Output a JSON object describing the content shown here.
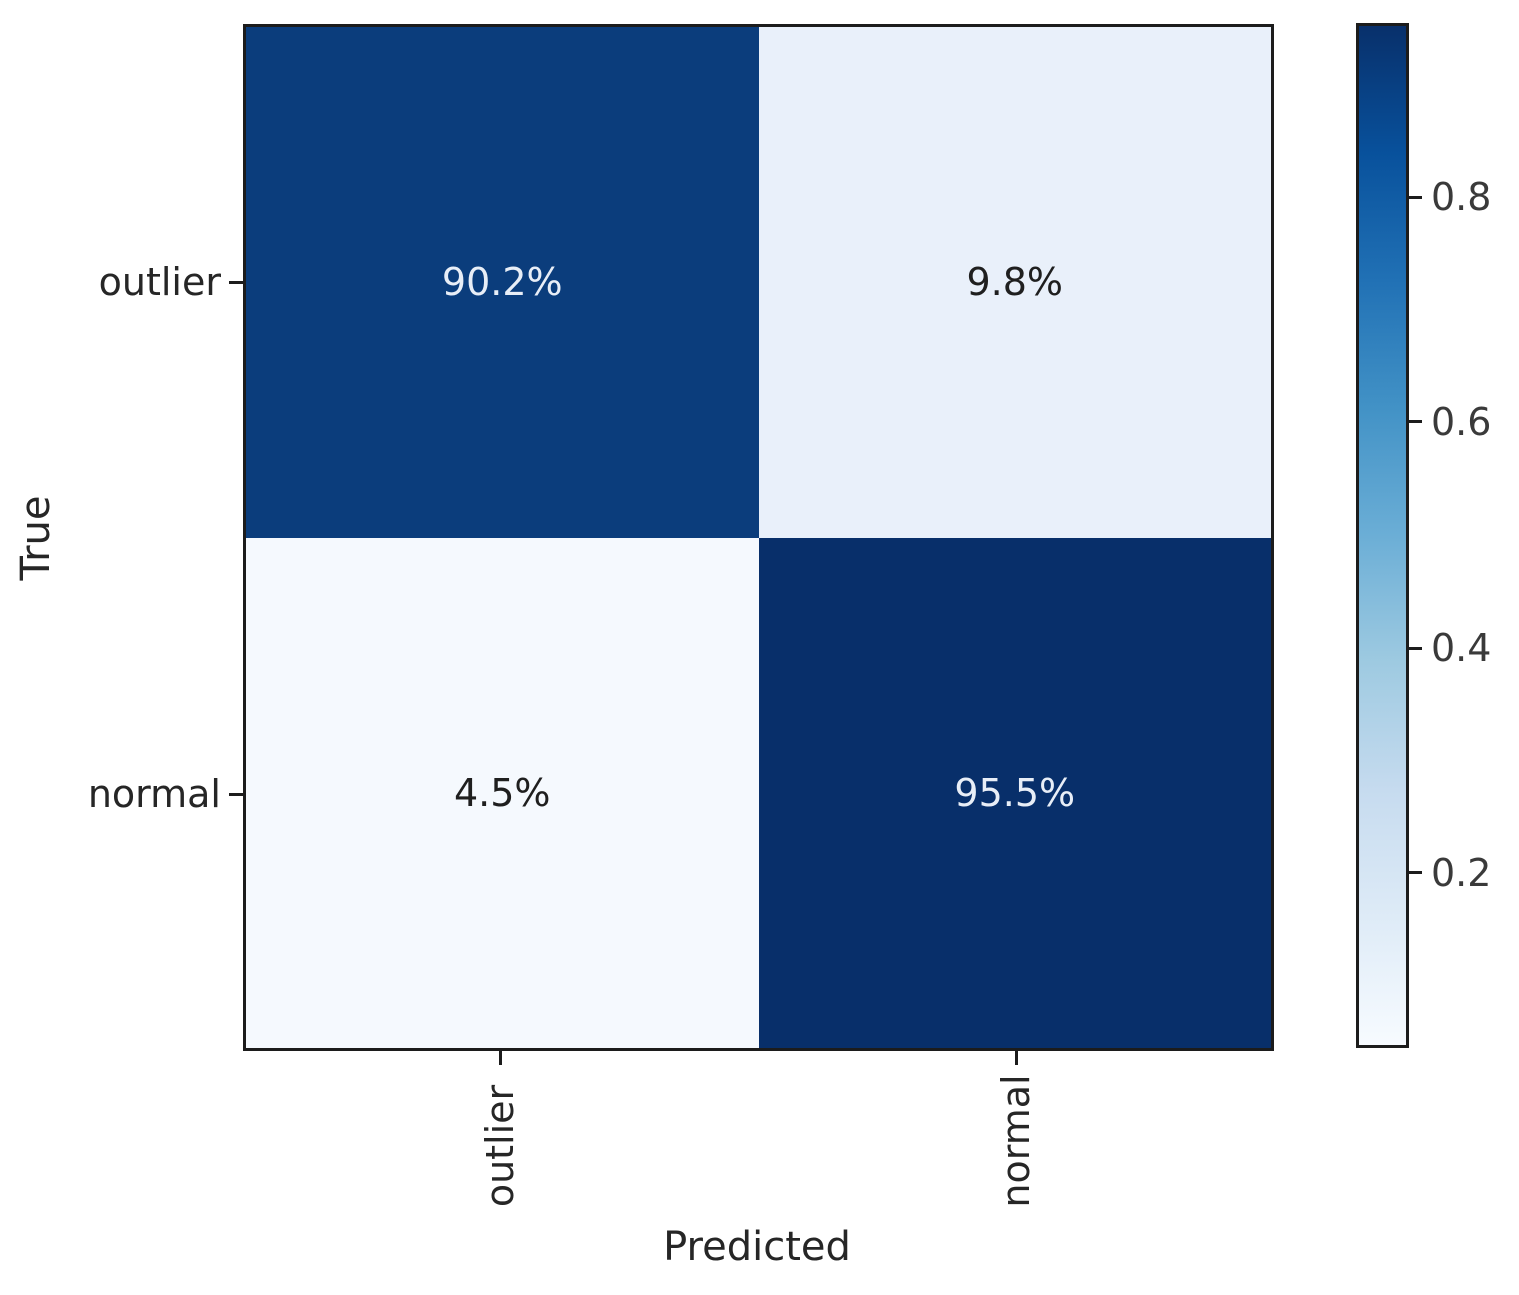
{
  "figure": {
    "background": "#ffffff",
    "spine_color": "#1c1c1c"
  },
  "chart_data": {
    "type": "heatmap",
    "title": "",
    "xlabel": "Predicted",
    "ylabel": "True",
    "x_categories": [
      "outlier",
      "normal"
    ],
    "y_categories": [
      "outlier",
      "normal"
    ],
    "values_percent": [
      [
        90.2,
        9.8
      ],
      [
        4.5,
        95.5
      ]
    ],
    "cell_labels": [
      [
        "90.2%",
        "9.8%"
      ],
      [
        "4.5%",
        "95.5%"
      ]
    ],
    "colormap": "Blues",
    "vmin": 0.045,
    "vmax": 0.955,
    "colorbar_tick_values": [
      0.8,
      0.6,
      0.4,
      0.2
    ],
    "grid": false,
    "legend_position": "right-colorbar"
  },
  "axes": {
    "ylabel": "True",
    "xlabel": "Predicted",
    "y_tick_labels": [
      "outlier",
      "normal"
    ],
    "x_tick_labels": [
      "outlier",
      "normal"
    ]
  },
  "heatmap": {
    "cells": [
      {
        "row": "outlier",
        "col": "outlier",
        "label": "90.2%",
        "bg": "#0b3d7c",
        "fg": "#e8eef7"
      },
      {
        "row": "outlier",
        "col": "normal",
        "label": "9.8%",
        "bg": "#e9f0fa",
        "fg": "#1f1f1f"
      },
      {
        "row": "normal",
        "col": "outlier",
        "label": "4.5%",
        "bg": "#f5f9fe",
        "fg": "#1f1f1f"
      },
      {
        "row": "normal",
        "col": "normal",
        "label": "95.5%",
        "bg": "#082f6a",
        "fg": "#e8eef7"
      }
    ]
  },
  "colorbar": {
    "ticks": [
      {
        "label": "0.8",
        "top_pct": 17.0
      },
      {
        "label": "0.6",
        "top_pct": 38.9
      },
      {
        "label": "0.4",
        "top_pct": 61.0
      },
      {
        "label": "0.2",
        "top_pct": 82.9
      }
    ],
    "gradient_bottom_to_top": [
      "#f7fbff",
      "#deebf7",
      "#c6dbef",
      "#9ecae1",
      "#6baed6",
      "#4292c6",
      "#2171b5",
      "#08519c",
      "#08306b"
    ]
  }
}
